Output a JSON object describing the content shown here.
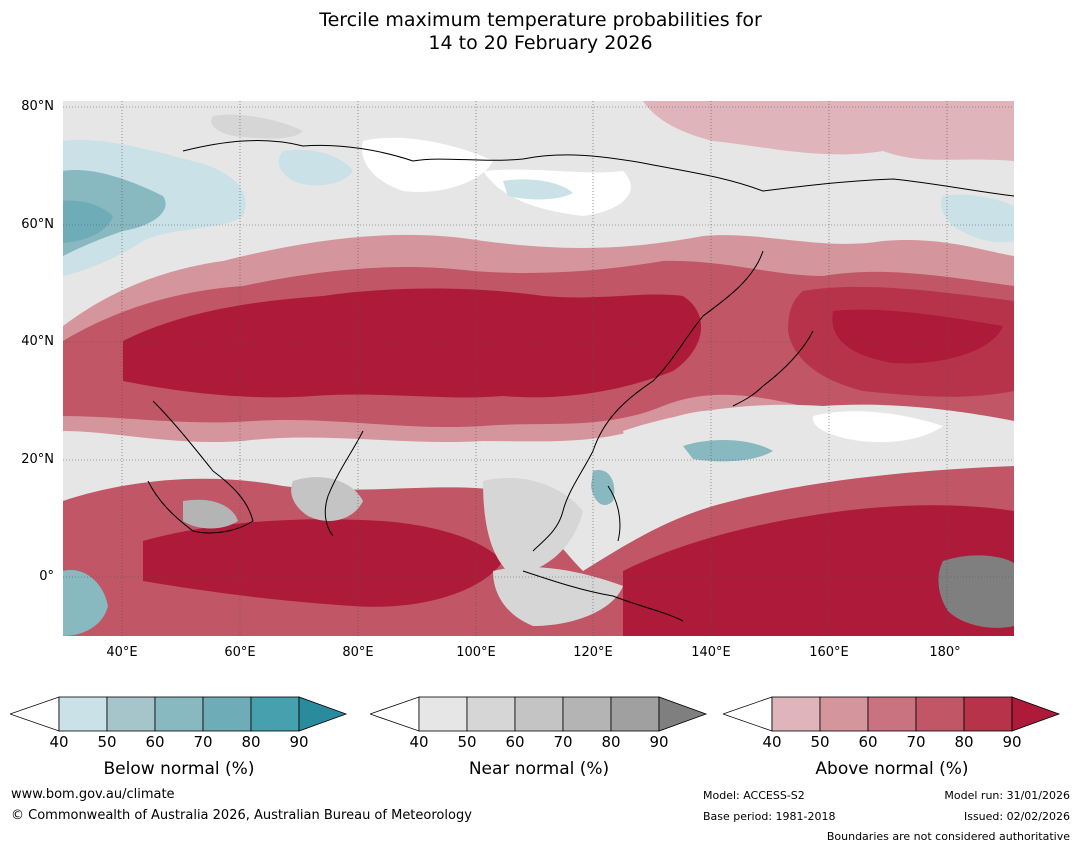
{
  "title": {
    "line1": "Tercile maximum temperature probabilities for",
    "line2": "14 to 20 February 2026"
  },
  "map": {
    "lat_labels": [
      "80°N",
      "60°N",
      "40°N",
      "20°N",
      "0°"
    ],
    "lon_labels": [
      "40°E",
      "60°E",
      "80°E",
      "100°E",
      "120°E",
      "140°E",
      "160°E",
      "180°"
    ],
    "extent": {
      "lon_min": 30,
      "lon_max": 191,
      "lat_min": -10,
      "lat_max": 81
    },
    "background_color": "#e6e6e6"
  },
  "legend": {
    "ticks": [
      "40",
      "50",
      "60",
      "70",
      "80",
      "90"
    ],
    "below": {
      "title": "Below normal (%)",
      "colors": [
        "#ffffff",
        "#c9e1e7",
        "#a5c5ca",
        "#88b8c0",
        "#6eadb8",
        "#47a0ae",
        "#2a8b9d"
      ]
    },
    "near": {
      "title": "Near normal (%)",
      "colors": [
        "#ffffff",
        "#e6e6e6",
        "#d6d6d6",
        "#c4c4c4",
        "#b4b4b4",
        "#a0a0a0",
        "#7f7f7f"
      ]
    },
    "above": {
      "title": "Above normal (%)",
      "colors": [
        "#ffffff",
        "#e0b4bb",
        "#d5959d",
        "#c97380",
        "#c05666",
        "#b6334a",
        "#ad1a3a"
      ]
    }
  },
  "footer": {
    "website": "www.bom.gov.au/climate",
    "copyright": "© Commonwealth of Australia 2026, Australian Bureau of Meteorology",
    "model": "Model: ACCESS-S2",
    "base_period": "Base period: 1981-2018",
    "model_run": "Model run: 31/01/2026",
    "issued": "Issued: 02/02/2026",
    "disclaimer": "Boundaries are not considered authoritative"
  }
}
